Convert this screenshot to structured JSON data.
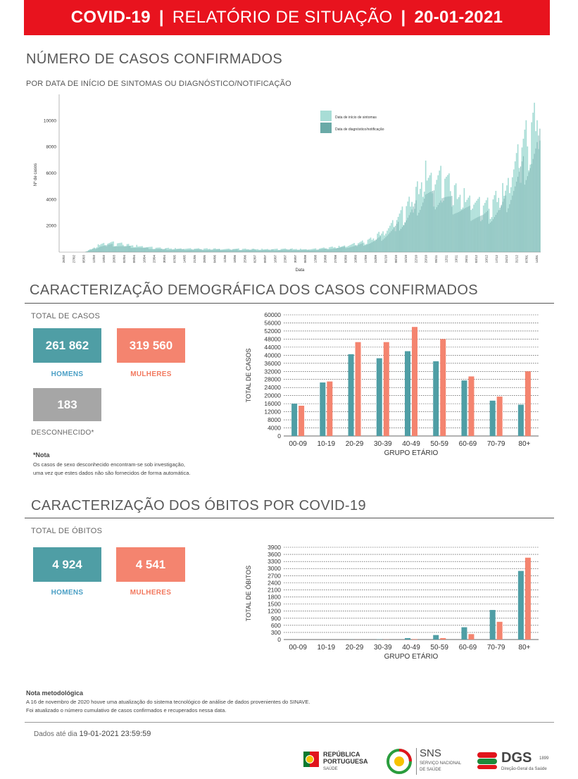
{
  "header": {
    "part1": "COVID-19",
    "sep1": "|",
    "part2": "RELATÓRIO DE SITUAÇÃO",
    "sep2": "|",
    "date": "20-01-2021"
  },
  "cases_section": {
    "title": "NÚMERO DE CASOS CONFIRMADOS",
    "subtitle": "POR DATA DE INÍCIO DE SINTOMAS OU DIAGNÓSTICO/NOTIFICAÇÃO"
  },
  "timeline_chart": {
    "type": "bar",
    "ylabel": "Nº de casos",
    "xlabel": "Data",
    "yticks": [
      2000,
      4000,
      6000,
      8000,
      10000
    ],
    "ylim": [
      0,
      12000
    ],
    "xtick_labels": [
      "26/02",
      "27/02",
      "05/03",
      "12/03",
      "19/03",
      "26/03",
      "02/04",
      "09/04",
      "16/04",
      "23/04",
      "30/04",
      "07/05",
      "14/05",
      "21/05",
      "28/05",
      "04/06",
      "11/06",
      "18/06",
      "25/06",
      "02/07",
      "09/07",
      "16/07",
      "23/07",
      "30/07",
      "06/08",
      "13/08",
      "20/08",
      "27/08",
      "03/09",
      "10/09",
      "17/09",
      "24/09",
      "01/10",
      "08/10",
      "15/10",
      "22/10",
      "29/10",
      "05/11",
      "12/11",
      "19/11",
      "26/11",
      "03/12",
      "10/12",
      "17/12",
      "24/12",
      "31/12",
      "07/01",
      "14/01"
    ],
    "legend": [
      {
        "name": "Data de início de sintomas",
        "color": "#a8ddd6"
      },
      {
        "name": "Data de diagnóstico/notificação",
        "color": "#6aaaa7"
      }
    ],
    "colors": {
      "onset": "#a8ddd6",
      "diagnosis": "#6aaaa7"
    },
    "grid": false
  },
  "demographics": {
    "title": "CARACTERIZAÇÃO DEMOGRÁFICA DOS CASOS CONFIRMADOS",
    "total_label": "TOTAL DE CASOS",
    "men_value": "261 862",
    "men_label": "HOMENS",
    "women_value": "319 560",
    "women_label": "MULHERES",
    "unknown_value": "183",
    "unknown_label": "DESCONHECIDO*",
    "note_title": "*Nota",
    "note_line1": "Os casos de sexo desconhecido encontram-se sob investigação,",
    "note_line2": "uma vez que estes dados não são fornecidos de forma automática."
  },
  "deaths": {
    "title": "CARACTERIZAÇÃO DOS ÓBITOS POR COVID-19",
    "total_label": "TOTAL DE ÓBITOS",
    "men_value": "4 924",
    "men_label": "HOMENS",
    "women_value": "4 541",
    "women_label": "MULHERES"
  },
  "chart_data": [
    {
      "type": "bar",
      "title": "",
      "xlabel": "GRUPO ETÁRIO",
      "ylabel": "TOTAL DE CASOS",
      "categories": [
        "00-09",
        "10-19",
        "20-29",
        "30-39",
        "40-49",
        "50-59",
        "60-69",
        "70-79",
        "80+"
      ],
      "series": [
        {
          "name": "",
          "color": "#4f9ea5",
          "values": [
            16000,
            26500,
            40500,
            38500,
            42000,
            37000,
            27500,
            17500,
            15500
          ]
        },
        {
          "name": "",
          "color": "#f4846f",
          "values": [
            15000,
            27000,
            46500,
            46500,
            54000,
            48000,
            29500,
            19500,
            32000
          ]
        }
      ],
      "yticks": [
        0,
        4000,
        8000,
        12000,
        16000,
        20000,
        24000,
        28000,
        32000,
        36000,
        40000,
        44000,
        48000,
        52000,
        56000,
        60000
      ],
      "ylim": [
        0,
        60000
      ],
      "grid": true
    },
    {
      "type": "bar",
      "title": "",
      "xlabel": "GRUPO ETÁRIO",
      "ylabel": "TOTAL DE ÓBITOS",
      "categories": [
        "00-09",
        "10-19",
        "20-29",
        "30-39",
        "40-49",
        "50-59",
        "60-69",
        "70-79",
        "80+"
      ],
      "series": [
        {
          "name": "",
          "color": "#4f9ea5",
          "values": [
            0,
            0,
            3,
            10,
            60,
            190,
            520,
            1250,
            2900
          ]
        },
        {
          "name": "",
          "color": "#f4846f",
          "values": [
            0,
            0,
            2,
            5,
            20,
            60,
            230,
            750,
            3460
          ]
        }
      ],
      "yticks": [
        0,
        300,
        600,
        900,
        1200,
        1500,
        1800,
        2100,
        2400,
        2700,
        3000,
        3300,
        3600,
        3900
      ],
      "ylim": [
        0,
        3900
      ],
      "grid": true
    }
  ],
  "methodology": {
    "title": "Nota metodológica",
    "line1": "A 16 de novembro de 2020 houve uma atualização do sistema tecnológico de análise de dados provenientes do SINAVE.",
    "line2": "Foi atualizado o número cumulativo de casos confirmados e recuperados nessa data."
  },
  "footer": {
    "data_label": "Dados até dia",
    "data_date": "19-01-2021",
    "data_time": "23:59:59",
    "logo_rep_line1": "REPÚBLICA",
    "logo_rep_line2": "PORTUGUESA",
    "logo_rep_sub": "SAÚDE",
    "logo_sns": "SNS",
    "logo_sns_sub1": "SERVIÇO NACIONAL",
    "logo_sns_sub2": "DE SAÚDE",
    "logo_dgs": "DGS",
    "logo_dgs_since": "1899",
    "logo_dgs_sub": "Direção-Geral da Saúde"
  }
}
